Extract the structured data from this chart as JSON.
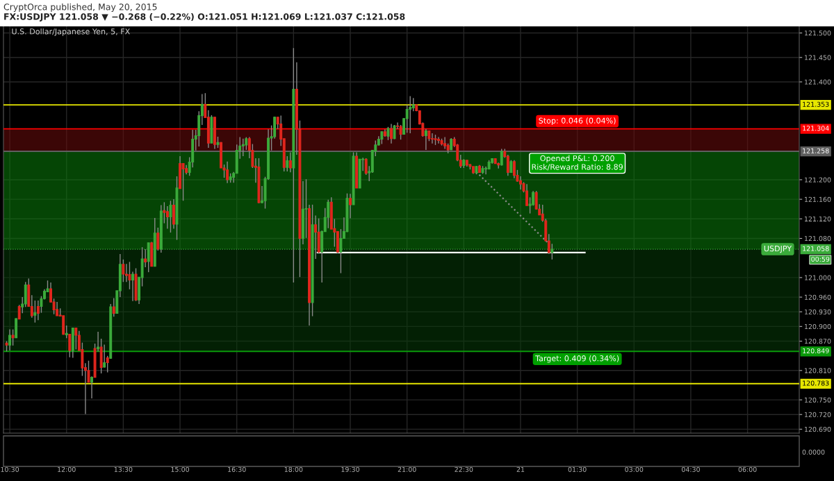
{
  "chart_data": [
    {
      "type": "candlestick",
      "title": "U.S. Dollar/Japanese Yen, 5, FX",
      "subtitle": "FX:USDJPY 121.058 ▼ −0.268 (−0.22%) O:121.051 H:121.069 L:121.037 C:121.058",
      "annotations": [
        "CryptOrca published, May 20, 2015",
        {
          "text": "Stop: 0.046 (0.04%)",
          "x": "2015-05-21T01:30",
          "y": 121.304
        },
        {
          "text": "Opened P&L: 0.200\nRisk/Reward Ratio: 8.89",
          "x": "2015-05-21T01:30",
          "y": 121.258
        },
        {
          "text": "Target: 0.409 (0.34%)",
          "x": "2015-05-21T01:30",
          "y": 120.849
        },
        {
          "text": "USDJPY",
          "x": "2015-05-21T07:10",
          "y": 121.058
        },
        "00:59",
        "0.0000"
      ],
      "x": [
        "2015-05-20T10:25",
        "2015-05-20T10:30",
        "2015-05-20T10:35",
        "2015-05-20T10:40",
        "2015-05-20T10:45",
        "2015-05-20T10:50",
        "2015-05-20T10:55",
        "2015-05-20T11:00",
        "2015-05-20T11:05",
        "2015-05-20T11:10",
        "2015-05-20T11:15",
        "2015-05-20T11:20",
        "2015-05-20T11:25",
        "2015-05-20T11:30",
        "2015-05-20T11:35",
        "2015-05-20T11:40",
        "2015-05-20T11:45",
        "2015-05-20T11:50",
        "2015-05-20T11:55",
        "2015-05-20T12:00",
        "2015-05-20T12:05",
        "2015-05-20T12:10",
        "2015-05-20T12:15",
        "2015-05-20T12:20",
        "2015-05-20T12:25",
        "2015-05-20T12:30",
        "2015-05-20T12:35",
        "2015-05-20T12:40",
        "2015-05-20T12:45",
        "2015-05-20T12:50",
        "2015-05-20T12:55",
        "2015-05-20T13:00",
        "2015-05-20T13:05",
        "2015-05-20T13:10",
        "2015-05-20T13:15",
        "2015-05-20T13:20",
        "2015-05-20T13:25",
        "2015-05-20T13:30",
        "2015-05-20T13:35",
        "2015-05-20T13:40",
        "2015-05-20T13:45",
        "2015-05-20T13:50",
        "2015-05-20T13:55",
        "2015-05-20T14:00",
        "2015-05-20T14:05",
        "2015-05-20T14:10",
        "2015-05-20T14:15",
        "2015-05-20T14:20",
        "2015-05-20T14:25",
        "2015-05-20T14:30",
        "2015-05-20T14:35",
        "2015-05-20T14:40",
        "2015-05-20T14:45",
        "2015-05-20T14:50",
        "2015-05-20T14:55",
        "2015-05-20T15:00",
        "2015-05-20T15:05",
        "2015-05-20T15:10",
        "2015-05-20T15:15",
        "2015-05-20T15:20",
        "2015-05-20T15:25",
        "2015-05-20T15:30",
        "2015-05-20T15:35",
        "2015-05-20T15:40",
        "2015-05-20T15:45",
        "2015-05-20T15:50",
        "2015-05-20T15:55",
        "2015-05-20T16:00",
        "2015-05-20T16:05",
        "2015-05-20T16:10",
        "2015-05-20T16:15",
        "2015-05-20T16:20",
        "2015-05-20T16:25",
        "2015-05-20T16:30",
        "2015-05-20T16:35",
        "2015-05-20T16:40",
        "2015-05-20T16:45",
        "2015-05-20T16:50",
        "2015-05-20T16:55",
        "2015-05-20T17:00",
        "2015-05-20T17:05",
        "2015-05-20T17:10",
        "2015-05-20T17:15",
        "2015-05-20T17:20",
        "2015-05-20T17:25",
        "2015-05-20T17:30",
        "2015-05-20T17:35",
        "2015-05-20T17:40",
        "2015-05-20T17:45",
        "2015-05-20T17:50",
        "2015-05-20T17:55",
        "2015-05-20T18:00",
        "2015-05-20T18:05",
        "2015-05-20T18:10",
        "2015-05-20T18:15",
        "2015-05-20T18:20",
        "2015-05-20T18:25",
        "2015-05-20T18:30",
        "2015-05-20T18:35",
        "2015-05-20T18:40",
        "2015-05-20T18:45",
        "2015-05-20T18:50",
        "2015-05-20T18:55",
        "2015-05-20T19:00",
        "2015-05-20T19:05",
        "2015-05-20T19:10",
        "2015-05-20T19:15",
        "2015-05-20T19:20",
        "2015-05-20T19:25",
        "2015-05-20T19:30",
        "2015-05-20T19:35",
        "2015-05-20T19:40",
        "2015-05-20T19:45",
        "2015-05-20T19:50",
        "2015-05-20T19:55",
        "2015-05-20T20:00",
        "2015-05-20T20:05",
        "2015-05-20T20:10",
        "2015-05-20T20:15",
        "2015-05-20T20:20",
        "2015-05-20T20:25",
        "2015-05-20T20:30",
        "2015-05-20T20:35",
        "2015-05-20T20:40",
        "2015-05-20T20:45",
        "2015-05-20T20:50",
        "2015-05-20T20:55",
        "2015-05-20T21:00",
        "2015-05-20T21:05",
        "2015-05-20T21:10",
        "2015-05-20T21:15",
        "2015-05-20T21:20",
        "2015-05-20T21:25",
        "2015-05-20T21:30",
        "2015-05-20T21:35",
        "2015-05-20T21:40",
        "2015-05-20T21:45",
        "2015-05-20T21:50",
        "2015-05-20T21:55",
        "2015-05-20T22:00",
        "2015-05-20T22:05",
        "2015-05-20T22:10",
        "2015-05-20T22:15",
        "2015-05-20T22:20",
        "2015-05-20T22:25",
        "2015-05-20T22:30",
        "2015-05-20T22:35",
        "2015-05-20T22:40",
        "2015-05-20T22:45",
        "2015-05-20T22:50",
        "2015-05-20T22:55",
        "2015-05-20T23:00",
        "2015-05-20T23:05",
        "2015-05-20T23:10",
        "2015-05-20T23:15",
        "2015-05-20T23:20",
        "2015-05-20T23:25",
        "2015-05-20T23:30",
        "2015-05-20T23:35",
        "2015-05-20T23:40",
        "2015-05-20T23:45",
        "2015-05-20T23:50",
        "2015-05-20T23:55",
        "2015-05-21T00:00",
        "2015-05-21T00:05",
        "2015-05-21T00:10",
        "2015-05-21T00:15",
        "2015-05-21T00:20",
        "2015-05-21T00:25",
        "2015-05-21T00:30",
        "2015-05-21T00:35",
        "2015-05-21T00:40",
        "2015-05-21T00:45",
        "2015-05-21T00:50"
      ],
      "ohlc": [
        [
          120.866,
          120.87,
          120.849,
          120.862
        ],
        [
          120.862,
          120.894,
          120.851,
          120.882
        ],
        [
          120.882,
          120.894,
          120.861,
          120.877
        ],
        [
          120.877,
          120.917,
          120.877,
          120.916
        ],
        [
          120.941,
          120.944,
          120.915,
          120.915
        ],
        [
          120.94,
          120.96,
          120.927,
          120.946
        ],
        [
          120.946,
          120.991,
          120.94,
          120.985
        ],
        [
          120.985,
          120.998,
          120.941,
          120.941
        ],
        [
          120.941,
          120.964,
          120.918,
          120.922
        ],
        [
          120.923,
          120.953,
          120.908,
          120.928
        ],
        [
          120.941,
          120.953,
          120.913,
          120.927
        ],
        [
          120.941,
          120.962,
          120.928,
          120.957
        ],
        [
          120.957,
          120.976,
          120.955,
          120.972
        ],
        [
          120.971,
          120.994,
          120.971,
          120.977
        ],
        [
          120.977,
          120.99,
          120.949,
          120.95
        ],
        [
          120.95,
          120.957,
          120.925,
          120.934
        ],
        [
          120.935,
          120.95,
          120.922,
          120.922
        ],
        [
          120.923,
          120.937,
          120.921,
          120.921
        ],
        [
          120.922,
          120.922,
          120.883,
          120.884
        ],
        [
          120.883,
          120.902,
          120.876,
          120.886
        ],
        [
          120.884,
          120.884,
          120.837,
          120.851
        ],
        [
          120.851,
          120.897,
          120.836,
          120.897
        ],
        [
          120.897,
          120.897,
          120.853,
          120.882
        ],
        [
          120.882,
          120.891,
          120.85,
          120.851
        ],
        [
          120.853,
          120.867,
          120.799,
          120.815
        ],
        [
          120.816,
          120.825,
          120.721,
          120.81
        ],
        [
          120.81,
          120.83,
          120.786,
          120.786
        ],
        [
          120.786,
          120.798,
          120.753,
          120.796
        ],
        [
          120.855,
          120.865,
          120.796,
          120.796
        ],
        [
          120.854,
          120.889,
          120.849,
          120.858
        ],
        [
          120.858,
          120.875,
          120.804,
          120.816
        ],
        [
          120.817,
          120.863,
          120.816,
          120.826
        ],
        [
          120.836,
          120.84,
          120.806,
          120.826
        ],
        [
          120.835,
          120.946,
          120.834,
          120.94
        ],
        [
          120.94,
          120.958,
          120.92,
          120.927
        ],
        [
          120.927,
          120.973,
          120.927,
          120.973
        ],
        [
          120.973,
          121.048,
          120.96,
          121.027
        ],
        [
          121.027,
          121.037,
          120.991,
          121.007
        ],
        [
          121.007,
          121.028,
          120.991,
          121.004
        ],
        [
          121.006,
          121.032,
          120.976,
          120.995
        ],
        [
          120.995,
          121.012,
          120.952,
          121.007
        ],
        [
          121.007,
          121.019,
          120.952,
          120.954
        ],
        [
          120.954,
          121.001,
          120.946,
          121.001
        ],
        [
          121.0,
          121.062,
          120.982,
          121.038
        ],
        [
          121.038,
          121.058,
          121.021,
          121.032
        ],
        [
          121.033,
          121.071,
          121.011,
          121.071
        ],
        [
          121.071,
          121.073,
          121.023,
          121.023
        ],
        [
          121.023,
          121.122,
          121.023,
          121.091
        ],
        [
          121.091,
          121.102,
          121.055,
          121.058
        ],
        [
          121.058,
          121.148,
          121.051,
          121.136
        ],
        [
          121.137,
          121.154,
          121.111,
          121.133
        ],
        [
          121.135,
          121.146,
          121.1,
          121.124
        ],
        [
          121.124,
          121.157,
          121.092,
          121.148
        ],
        [
          121.148,
          121.16,
          121.1,
          121.109
        ],
        [
          121.109,
          121.207,
          121.077,
          121.183
        ],
        [
          121.233,
          121.248,
          121.182,
          121.182
        ],
        [
          121.233,
          121.233,
          121.157,
          121.222
        ],
        [
          121.223,
          121.23,
          121.211,
          121.215
        ],
        [
          121.215,
          121.246,
          121.208,
          121.236
        ],
        [
          121.236,
          121.302,
          121.225,
          121.283
        ],
        [
          121.283,
          121.302,
          121.26,
          121.29
        ],
        [
          121.29,
          121.34,
          121.268,
          121.331
        ],
        [
          121.331,
          121.375,
          121.312,
          121.354
        ],
        [
          121.354,
          121.377,
          121.327,
          121.327
        ],
        [
          121.328,
          121.342,
          121.265,
          121.275
        ],
        [
          121.275,
          121.332,
          121.275,
          121.328
        ],
        [
          121.328,
          121.328,
          121.263,
          121.272
        ],
        [
          121.272,
          121.288,
          121.265,
          121.276
        ],
        [
          121.276,
          121.277,
          121.224,
          121.224
        ],
        [
          121.224,
          121.231,
          121.204,
          121.22
        ],
        [
          121.22,
          121.237,
          121.193,
          121.2
        ],
        [
          121.2,
          121.213,
          121.194,
          121.206
        ],
        [
          121.205,
          121.216,
          121.194,
          121.213
        ],
        [
          121.213,
          121.272,
          121.213,
          121.26
        ],
        [
          121.26,
          121.287,
          121.243,
          121.269
        ],
        [
          121.269,
          121.284,
          121.248,
          121.272
        ],
        [
          121.271,
          121.287,
          121.261,
          121.284
        ],
        [
          121.284,
          121.287,
          121.244,
          121.26
        ],
        [
          121.26,
          121.273,
          121.224,
          121.227
        ],
        [
          121.228,
          121.244,
          121.194,
          121.225
        ],
        [
          121.226,
          121.244,
          121.152,
          121.153
        ],
        [
          121.153,
          121.187,
          121.152,
          121.157
        ],
        [
          121.157,
          121.206,
          121.141,
          121.202
        ],
        [
          121.202,
          121.303,
          121.2,
          121.285
        ],
        [
          121.285,
          121.311,
          121.26,
          121.288
        ],
        [
          121.288,
          121.329,
          121.284,
          121.328
        ],
        [
          121.328,
          121.328,
          121.304,
          121.314
        ],
        [
          121.314,
          121.331,
          121.269,
          121.283
        ],
        [
          121.284,
          121.284,
          121.217,
          121.225
        ],
        [
          121.225,
          121.248,
          121.217,
          121.239
        ],
        [
          121.239,
          121.256,
          121.215,
          121.224
        ],
        [
          121.224,
          121.469,
          120.99,
          121.385
        ],
        [
          121.385,
          121.44,
          121.251,
          121.303
        ],
        [
          121.303,
          121.321,
          121.001,
          121.08
        ],
        [
          121.08,
          121.197,
          121.068,
          121.14
        ],
        [
          121.14,
          121.201,
          121.081,
          121.141
        ],
        [
          121.141,
          121.149,
          120.902,
          120.949
        ],
        [
          120.949,
          121.149,
          120.921,
          121.108
        ],
        [
          121.108,
          121.127,
          121.038,
          121.093
        ],
        [
          121.093,
          121.121,
          121.049,
          121.052
        ],
        [
          121.052,
          121.096,
          120.99,
          121.094
        ],
        [
          121.094,
          121.142,
          121.094,
          121.123
        ],
        [
          121.123,
          121.159,
          121.101,
          121.154
        ],
        [
          121.154,
          121.164,
          121.099,
          121.099
        ],
        [
          121.1,
          121.12,
          121.063,
          121.093
        ],
        [
          121.094,
          121.094,
          121.05,
          121.052
        ],
        [
          121.052,
          121.099,
          121.009,
          121.08
        ],
        [
          121.08,
          121.123,
          121.08,
          121.094
        ],
        [
          121.094,
          121.172,
          121.093,
          121.162
        ],
        [
          121.162,
          121.171,
          121.121,
          121.149
        ],
        [
          121.149,
          121.256,
          121.149,
          121.248
        ],
        [
          121.248,
          121.256,
          121.183,
          121.183
        ],
        [
          121.183,
          121.242,
          121.183,
          121.242
        ],
        [
          121.241,
          121.245,
          121.218,
          121.242
        ],
        [
          121.242,
          121.244,
          121.21,
          121.213
        ],
        [
          121.214,
          121.228,
          121.197,
          121.217
        ],
        [
          121.216,
          121.26,
          121.214,
          121.26
        ],
        [
          121.258,
          121.28,
          121.248,
          121.271
        ],
        [
          121.271,
          121.289,
          121.27,
          121.283
        ],
        [
          121.283,
          121.299,
          121.273,
          121.298
        ],
        [
          121.298,
          121.303,
          121.288,
          121.29
        ],
        [
          121.289,
          121.308,
          121.281,
          121.305
        ],
        [
          121.305,
          121.314,
          121.274,
          121.284
        ],
        [
          121.284,
          121.312,
          121.283,
          121.31
        ],
        [
          121.31,
          121.317,
          121.304,
          121.309
        ],
        [
          121.309,
          121.312,
          121.282,
          121.293
        ],
        [
          121.293,
          121.326,
          121.293,
          121.325
        ],
        [
          121.325,
          121.353,
          121.296,
          121.344
        ],
        [
          121.344,
          121.371,
          121.295,
          121.348
        ],
        [
          121.347,
          121.367,
          121.34,
          121.353
        ],
        [
          121.353,
          121.353,
          121.34,
          121.341
        ],
        [
          121.341,
          121.341,
          121.313,
          121.314
        ],
        [
          121.315,
          121.317,
          121.288,
          121.29
        ],
        [
          121.29,
          121.304,
          121.261,
          121.3
        ],
        [
          121.3,
          121.3,
          121.279,
          121.284
        ],
        [
          121.284,
          121.295,
          121.274,
          121.283
        ],
        [
          121.284,
          121.292,
          121.271,
          121.282
        ],
        [
          121.283,
          121.287,
          121.274,
          121.28
        ],
        [
          121.28,
          121.284,
          121.27,
          121.273
        ],
        [
          121.274,
          121.287,
          121.263,
          121.269
        ],
        [
          121.27,
          121.274,
          121.254,
          121.261
        ],
        [
          121.261,
          121.285,
          121.261,
          121.283
        ],
        [
          121.283,
          121.287,
          121.267,
          121.27
        ],
        [
          121.271,
          121.273,
          121.238,
          121.24
        ],
        [
          121.24,
          121.251,
          121.224,
          121.228
        ],
        [
          121.229,
          121.242,
          121.224,
          121.24
        ],
        [
          121.24,
          121.24,
          121.227,
          121.23
        ],
        [
          121.231,
          121.232,
          121.221,
          121.227
        ],
        [
          121.227,
          121.227,
          121.212,
          121.214
        ],
        [
          121.214,
          121.228,
          121.211,
          121.227
        ],
        [
          121.228,
          121.23,
          121.214,
          121.215
        ],
        [
          121.215,
          121.228,
          121.212,
          121.223
        ],
        [
          121.222,
          121.227,
          121.211,
          121.223
        ],
        [
          121.222,
          121.24,
          121.221,
          121.236
        ],
        [
          121.235,
          121.243,
          121.233,
          121.243
        ],
        [
          121.243,
          121.244,
          121.233,
          121.233
        ],
        [
          121.233,
          121.235,
          121.223,
          121.23
        ],
        [
          121.23,
          121.263,
          121.229,
          121.258
        ],
        [
          121.258,
          121.263,
          121.245,
          121.247
        ],
        [
          121.248,
          121.251,
          121.208,
          121.215
        ],
        [
          121.215,
          121.24,
          121.214,
          121.237
        ],
        [
          121.237,
          121.24,
          121.203,
          121.209
        ],
        [
          121.209,
          121.22,
          121.196,
          121.197
        ],
        [
          121.198,
          121.207,
          121.18,
          121.191
        ],
        [
          121.192,
          121.195,
          121.174,
          121.177
        ],
        [
          121.177,
          121.191,
          121.147,
          121.147
        ],
        [
          121.147,
          121.164,
          121.131,
          121.15
        ],
        [
          121.149,
          121.177,
          121.147,
          121.174
        ],
        [
          121.174,
          121.177,
          121.139,
          121.14
        ],
        [
          121.14,
          121.15,
          121.128,
          121.128
        ],
        [
          121.13,
          121.149,
          121.114,
          121.117
        ],
        [
          121.116,
          121.12,
          121.074,
          121.075
        ],
        [
          121.075,
          121.089,
          121.048,
          121.051
        ],
        [
          121.051,
          121.069,
          121.037,
          121.058
        ]
      ],
      "colors": [
        "#e0261d",
        "#3bab3b",
        "#e0261d",
        "#3bab3b",
        "#e0261d",
        "#3bab3b",
        "#3bab3b",
        "#e0261d",
        "#e0261d",
        "#3bab3b",
        "#e0261d",
        "#3bab3b",
        "#3bab3b",
        "#3bab3b",
        "#e0261d",
        "#e0261d",
        "#e0261d",
        "#e0261d",
        "#e0261d",
        "#3bab3b",
        "#e0261d",
        "#3bab3b",
        "#e0261d",
        "#e0261d",
        "#e0261d",
        "#e0261d",
        "#e0261d",
        "#3bab3b",
        "#e0261d",
        "#3bab3b",
        "#e0261d",
        "#3bab3b",
        "#e0261d",
        "#3bab3b",
        "#e0261d",
        "#3bab3b",
        "#3bab3b",
        "#e0261d",
        "#e0261d",
        "#e0261d",
        "#3bab3b",
        "#e0261d",
        "#3bab3b",
        "#3bab3b",
        "#e0261d",
        "#3bab3b",
        "#e0261d",
        "#3bab3b",
        "#e0261d",
        "#3bab3b",
        "#e0261d",
        "#e0261d",
        "#3bab3b",
        "#e0261d",
        "#3bab3b",
        "#e0261d",
        "#e0261d",
        "#e0261d",
        "#3bab3b",
        "#3bab3b",
        "#3bab3b",
        "#3bab3b",
        "#3bab3b",
        "#e0261d",
        "#e0261d",
        "#3bab3b",
        "#e0261d",
        "#3bab3b",
        "#e0261d",
        "#e0261d",
        "#e0261d",
        "#3bab3b",
        "#3bab3b",
        "#3bab3b",
        "#3bab3b",
        "#3bab3b",
        "#3bab3b",
        "#e0261d",
        "#e0261d",
        "#e0261d",
        "#e0261d",
        "#3bab3b",
        "#3bab3b",
        "#3bab3b",
        "#3bab3b",
        "#3bab3b",
        "#e0261d",
        "#e0261d",
        "#e0261d",
        "#3bab3b",
        "#e0261d",
        "#3bab3b",
        "#e0261d",
        "#e0261d",
        "#3bab3b",
        "#3bab3b",
        "#e0261d",
        "#3bab3b",
        "#e0261d",
        "#e0261d",
        "#3bab3b",
        "#3bab3b",
        "#3bab3b",
        "#e0261d",
        "#e0261d",
        "#e0261d",
        "#3bab3b",
        "#3bab3b",
        "#3bab3b",
        "#e0261d",
        "#3bab3b",
        "#e0261d",
        "#3bab3b",
        "#3bab3b",
        "#e0261d",
        "#3bab3b",
        "#3bab3b",
        "#3bab3b",
        "#3bab3b",
        "#3bab3b",
        "#e0261d",
        "#3bab3b",
        "#e0261d",
        "#3bab3b",
        "#e0261d",
        "#e0261d",
        "#3bab3b",
        "#3bab3b",
        "#3bab3b",
        "#3bab3b",
        "#e0261d",
        "#e0261d",
        "#e0261d",
        "#3bab3b",
        "#e0261d",
        "#e0261d",
        "#e0261d",
        "#e0261d",
        "#e0261d",
        "#e0261d",
        "#e0261d",
        "#3bab3b",
        "#e0261d",
        "#e0261d",
        "#e0261d",
        "#3bab3b",
        "#e0261d",
        "#e0261d",
        "#e0261d",
        "#3bab3b",
        "#e0261d",
        "#3bab3b",
        "#3bab3b",
        "#3bab3b",
        "#3bab3b",
        "#e0261d",
        "#e0261d",
        "#3bab3b",
        "#e0261d",
        "#e0261d",
        "#3bab3b",
        "#e0261d",
        "#e0261d",
        "#e0261d",
        "#e0261d",
        "#e0261d",
        "#3bab3b",
        "#3bab3b",
        "#e0261d",
        "#e0261d",
        "#e0261d",
        "#e0261d",
        "#e0261d",
        "#3bab3b"
      ],
      "series": [
        {
          "type": "line",
          "color": "#ffffff",
          "line_style": "solid",
          "x": [
            "2015-05-20T18:38",
            "2015-05-21T01:42"
          ],
          "values": [
            121.051,
            121.051
          ]
        },
        {
          "type": "line",
          "color": "#8c8c8c",
          "line_style": "dotted",
          "x": [
            "2015-05-20T22:50",
            "2015-05-21T00:45"
          ],
          "values": [
            121.216,
            121.069
          ]
        }
      ],
      "bands": [
        {
          "axis": "y",
          "from": 121.258,
          "to": 121.304,
          "color": "#6b0b0b"
        },
        {
          "axis": "y",
          "from": 121.058,
          "to": 121.258,
          "color": "#0a7d0a"
        },
        {
          "axis": "y",
          "from": 120.849,
          "to": 121.058,
          "color": "#063a08"
        }
      ],
      "ref_lines": [
        {
          "axis": "y",
          "value": 121.353,
          "label": "121.353",
          "color": "#e6e600",
          "line_style": "solid"
        },
        {
          "axis": "y",
          "value": 121.304,
          "label": "121.304",
          "color": "#ff0000",
          "line_style": "solid"
        },
        {
          "axis": "y",
          "value": 121.258,
          "label": "121.258",
          "color": "#5f5f5f",
          "line_style": "solid"
        },
        {
          "axis": "y",
          "value": 121.058,
          "label": "121.058",
          "color": "#3bab3b",
          "line_style": "dotted"
        },
        {
          "axis": "y",
          "value": 120.849,
          "label": "120.849",
          "color": "#0a9a0a",
          "line_style": "solid"
        },
        {
          "axis": "y",
          "value": 120.783,
          "label": "120.783",
          "color": "#e6e600",
          "line_style": "solid"
        }
      ],
      "xlim": [
        "2015-05-20T10:20",
        "2015-05-21T07:22"
      ],
      "xticks": [
        {
          "value": "2015-05-20T10:30",
          "label": "10:30"
        },
        {
          "value": "2015-05-20T12:00",
          "label": "12:00"
        },
        {
          "value": "2015-05-20T13:30",
          "label": "13:30"
        },
        {
          "value": "2015-05-20T15:00",
          "label": "15:00"
        },
        {
          "value": "2015-05-20T16:30",
          "label": "16:30"
        },
        {
          "value": "2015-05-20T18:00",
          "label": "18:00"
        },
        {
          "value": "2015-05-20T19:30",
          "label": "19:30"
        },
        {
          "value": "2015-05-20T21:00",
          "label": "21:00"
        },
        {
          "value": "2015-05-20T22:30",
          "label": "22:30"
        },
        {
          "value": "2015-05-21T00:00",
          "label": "21"
        },
        {
          "value": "2015-05-21T01:30",
          "label": "01:30"
        },
        {
          "value": "2015-05-21T03:00",
          "label": "03:00"
        },
        {
          "value": "2015-05-21T04:30",
          "label": "04:30"
        },
        {
          "value": "2015-05-21T06:00",
          "label": "06:00"
        }
      ],
      "ylim": [
        120.682,
        121.522
      ],
      "yticks": [
        {
          "value": 121.5,
          "label": "121.500"
        },
        {
          "value": 121.45,
          "label": "121.450"
        },
        {
          "value": 121.4,
          "label": "121.400"
        },
        {
          "value": 121.2,
          "label": "121.200"
        },
        {
          "value": 121.16,
          "label": "121.160"
        },
        {
          "value": 121.12,
          "label": "121.120"
        },
        {
          "value": 121.08,
          "label": "121.080"
        },
        {
          "value": 121.0,
          "label": "121.000"
        },
        {
          "value": 120.96,
          "label": "120.960"
        },
        {
          "value": 120.93,
          "label": "120.930"
        },
        {
          "value": 120.9,
          "label": "120.900"
        },
        {
          "value": 120.87,
          "label": "120.870"
        },
        {
          "value": 120.81,
          "label": "120.810"
        },
        {
          "value": 120.75,
          "label": "120.750"
        },
        {
          "value": 120.72,
          "label": "120.720"
        },
        {
          "value": 120.69,
          "label": "120.690"
        }
      ],
      "grid": true
    }
  ]
}
